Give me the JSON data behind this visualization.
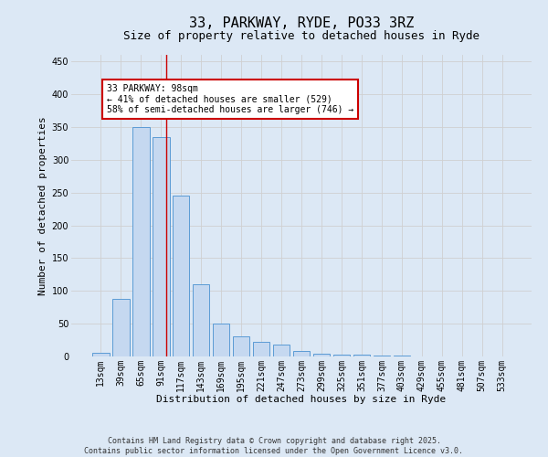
{
  "title1": "33, PARKWAY, RYDE, PO33 3RZ",
  "title2": "Size of property relative to detached houses in Ryde",
  "xlabel": "Distribution of detached houses by size in Ryde",
  "ylabel": "Number of detached properties",
  "categories": [
    "13sqm",
    "39sqm",
    "65sqm",
    "91sqm",
    "117sqm",
    "143sqm",
    "169sqm",
    "195sqm",
    "221sqm",
    "247sqm",
    "273sqm",
    "299sqm",
    "325sqm",
    "351sqm",
    "377sqm",
    "403sqm",
    "429sqm",
    "455sqm",
    "481sqm",
    "507sqm",
    "533sqm"
  ],
  "values": [
    5,
    88,
    350,
    335,
    245,
    110,
    50,
    30,
    23,
    18,
    8,
    4,
    3,
    3,
    2,
    1,
    0.5,
    0.5,
    0.5,
    0.5,
    0.5
  ],
  "bar_color": "#c5d8f0",
  "bar_edge_color": "#5b9bd5",
  "grid_color": "#d0d0d0",
  "background_color": "#dce8f5",
  "annotation_text": "33 PARKWAY: 98sqm\n← 41% of detached houses are smaller (529)\n58% of semi-detached houses are larger (746) →",
  "annotation_box_color": "#ffffff",
  "annotation_box_edge_color": "#cc0000",
  "ylim": [
    0,
    460
  ],
  "yticks": [
    0,
    50,
    100,
    150,
    200,
    250,
    300,
    350,
    400,
    450
  ],
  "footer1": "Contains HM Land Registry data © Crown copyright and database right 2025.",
  "footer2": "Contains public sector information licensed under the Open Government Licence v3.0.",
  "title1_fontsize": 11,
  "title2_fontsize": 9,
  "xlabel_fontsize": 8,
  "ylabel_fontsize": 8,
  "tick_fontsize": 7,
  "annotation_fontsize": 7,
  "footer_fontsize": 6
}
